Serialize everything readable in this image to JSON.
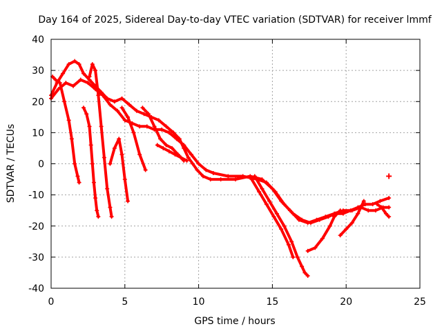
{
  "chart_data": {
    "type": "scatter",
    "title": "Day 164 of 2025, Sidereal Day-to-day VTEC variation (SDTVAR) for receiver lmmf",
    "xlabel": "GPS time / hours",
    "ylabel": "SDTVAR / TECUs",
    "xlim": [
      0,
      25
    ],
    "ylim": [
      -40,
      40
    ],
    "x_ticks": [
      "0",
      "5",
      "10",
      "15",
      "20",
      "25"
    ],
    "y_ticks": [
      "-40",
      "-30",
      "-20",
      "-10",
      "0",
      "10",
      "20",
      "30",
      "40"
    ],
    "grid": true,
    "marker": "+",
    "color": "#ff0000",
    "series": [
      {
        "name": "trace-1",
        "x": [
          0.0,
          0.4,
          0.8,
          1.2,
          1.6,
          1.9,
          2.2,
          2.6,
          3.0,
          3.4,
          3.8,
          4.3,
          4.8,
          5.3,
          5.8,
          6.3,
          6.8,
          7.3,
          7.8,
          8.3,
          8.7,
          9.0,
          9.3,
          9.6,
          9.9,
          10.3,
          10.8,
          11.5,
          12.5,
          13.5,
          14.3,
          15.0,
          15.6,
          16.2,
          16.8,
          17.4,
          18.0,
          18.6,
          19.2,
          19.8,
          20.4,
          21.0,
          21.5,
          22.0,
          22.5,
          22.9
        ],
        "y": [
          22,
          26,
          29,
          32,
          33,
          32,
          29,
          27,
          25,
          23,
          21,
          20,
          21,
          19,
          17,
          16,
          15,
          14,
          12,
          10,
          8,
          5,
          2,
          0,
          -2,
          -4,
          -5,
          -5,
          -5,
          -4,
          -5,
          -8,
          -12,
          -15,
          -18,
          -19,
          -18,
          -17,
          -16,
          -15,
          -15,
          -14,
          -15,
          -15,
          -14,
          -14
        ]
      },
      {
        "name": "trace-2",
        "x": [
          0.0,
          0.5,
          1.0,
          1.5,
          2.0,
          2.5,
          3.0,
          3.5,
          4.0,
          4.5,
          5.0,
          5.5,
          6.0,
          6.5,
          7.0,
          7.5,
          8.0,
          8.5,
          9.0,
          9.5,
          10.0,
          10.5,
          11.0,
          12.0,
          13.0,
          14.0,
          14.6,
          15.2,
          15.8,
          16.4,
          17.0,
          17.6,
          18.2,
          18.8,
          19.3,
          19.8,
          20.3,
          20.8,
          21.3,
          21.8,
          22.3,
          22.9
        ],
        "y": [
          21,
          24,
          26,
          25,
          27,
          26,
          24,
          22,
          19,
          17,
          14,
          13,
          12,
          12,
          11,
          11,
          10,
          8,
          6,
          3,
          0,
          -2,
          -3,
          -4,
          -4,
          -5,
          -6,
          -9,
          -13,
          -16,
          -18,
          -19,
          -18,
          -17,
          -16,
          -16,
          -15,
          -14,
          -13,
          -13,
          -12,
          -11
        ]
      },
      {
        "name": "trace-3",
        "x": [
          0.1,
          0.3,
          0.6,
          0.9,
          1.2,
          1.4,
          1.6,
          1.8,
          1.9
        ],
        "y": [
          28,
          27,
          26,
          20,
          14,
          8,
          0,
          -4,
          -6
        ]
      },
      {
        "name": "trace-4",
        "x": [
          2.2,
          2.4,
          2.6,
          2.7,
          2.8,
          2.9,
          3.0,
          3.1,
          3.2
        ],
        "y": [
          18,
          16,
          12,
          6,
          0,
          -6,
          -11,
          -15,
          -17
        ]
      },
      {
        "name": "trace-5",
        "x": [
          2.6,
          2.8,
          3.0,
          3.2,
          3.4,
          3.6,
          3.8,
          4.0,
          4.1
        ],
        "y": [
          28,
          32,
          30,
          22,
          12,
          2,
          -8,
          -14,
          -17
        ]
      },
      {
        "name": "trace-6",
        "x": [
          4.0,
          4.3,
          4.6,
          4.8,
          5.0,
          5.2
        ],
        "y": [
          0,
          5,
          8,
          3,
          -5,
          -12
        ]
      },
      {
        "name": "trace-7",
        "x": [
          4.8,
          5.2,
          5.6,
          6.0,
          6.4
        ],
        "y": [
          18,
          15,
          10,
          3,
          -2
        ]
      },
      {
        "name": "trace-8",
        "x": [
          6.2,
          6.6,
          7.0,
          7.4,
          7.8,
          8.2,
          8.6,
          9.0
        ],
        "y": [
          18,
          16,
          12,
          8,
          6,
          5,
          3,
          1
        ]
      },
      {
        "name": "trace-9",
        "x": [
          7.2,
          7.6,
          8.0,
          8.4,
          8.8,
          9.2
        ],
        "y": [
          6,
          5,
          4,
          3,
          2,
          1
        ]
      },
      {
        "name": "trace-10",
        "x": [
          13.8,
          14.3,
          14.8,
          15.3,
          15.8,
          16.3,
          16.7,
          17.0,
          17.2,
          17.4
        ],
        "y": [
          -4,
          -8,
          -12,
          -16,
          -20,
          -25,
          -30,
          -33,
          -35,
          -36
        ]
      },
      {
        "name": "trace-11",
        "x": [
          13.6,
          14.1,
          14.6,
          15.1,
          15.6,
          16.1,
          16.4
        ],
        "y": [
          -5,
          -9,
          -13,
          -17,
          -21,
          -26,
          -30
        ]
      },
      {
        "name": "trace-12",
        "x": [
          17.4,
          17.9,
          18.4,
          18.9,
          19.2,
          19.6
        ],
        "y": [
          -28,
          -27,
          -24,
          -20,
          -17,
          -15
        ]
      },
      {
        "name": "trace-13",
        "x": [
          19.6,
          20.0,
          20.4,
          20.8,
          21.2
        ],
        "y": [
          -23,
          -21,
          -19,
          -16,
          -12
        ]
      },
      {
        "name": "trace-14",
        "x": [
          22.1,
          22.4,
          22.7,
          22.9
        ],
        "y": [
          -13,
          -14,
          -16,
          -17
        ]
      }
    ],
    "outliers": [
      {
        "x": 22.9,
        "y": -4
      }
    ]
  }
}
